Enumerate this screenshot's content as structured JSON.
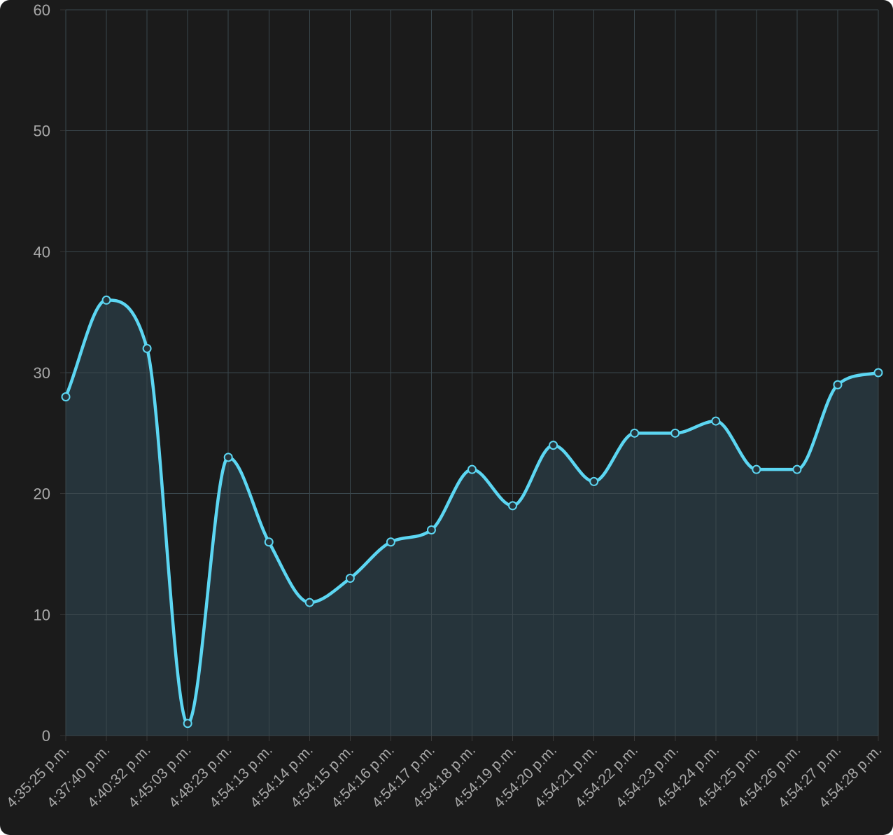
{
  "chart_data": {
    "type": "area",
    "title": "",
    "xlabel": "",
    "ylabel": "",
    "x": [
      "4:35:25 p.m.",
      "4:37:40 p.m.",
      "4:40:32 p.m.",
      "4:45:03 p.m.",
      "4:48:23 p.m.",
      "4:54:13 p.m.",
      "4:54:14 p.m.",
      "4:54:15 p.m.",
      "4:54:16 p.m.",
      "4:54:17 p.m.",
      "4:54:18 p.m.",
      "4:54:19 p.m.",
      "4:54:20 p.m.",
      "4:54:21 p.m.",
      "4:54:22 p.m.",
      "4:54:23 p.m.",
      "4:54:24 p.m.",
      "4:54:25 p.m.",
      "4:54:26 p.m.",
      "4:54:27 p.m.",
      "4:54:28 p.m."
    ],
    "series": [
      {
        "values": [
          28,
          36,
          32,
          1,
          23,
          16,
          11,
          13,
          16,
          17,
          22,
          19,
          24,
          21,
          25,
          25,
          26,
          22,
          22,
          29,
          30
        ],
        "color": "#5cd6f2",
        "fill_color": "#26343b"
      }
    ],
    "yticks": [
      0,
      10,
      20,
      30,
      40,
      50,
      60
    ],
    "ylim": [
      0,
      60
    ],
    "grid": true,
    "legend": "none",
    "background": "#1b1b1b"
  }
}
